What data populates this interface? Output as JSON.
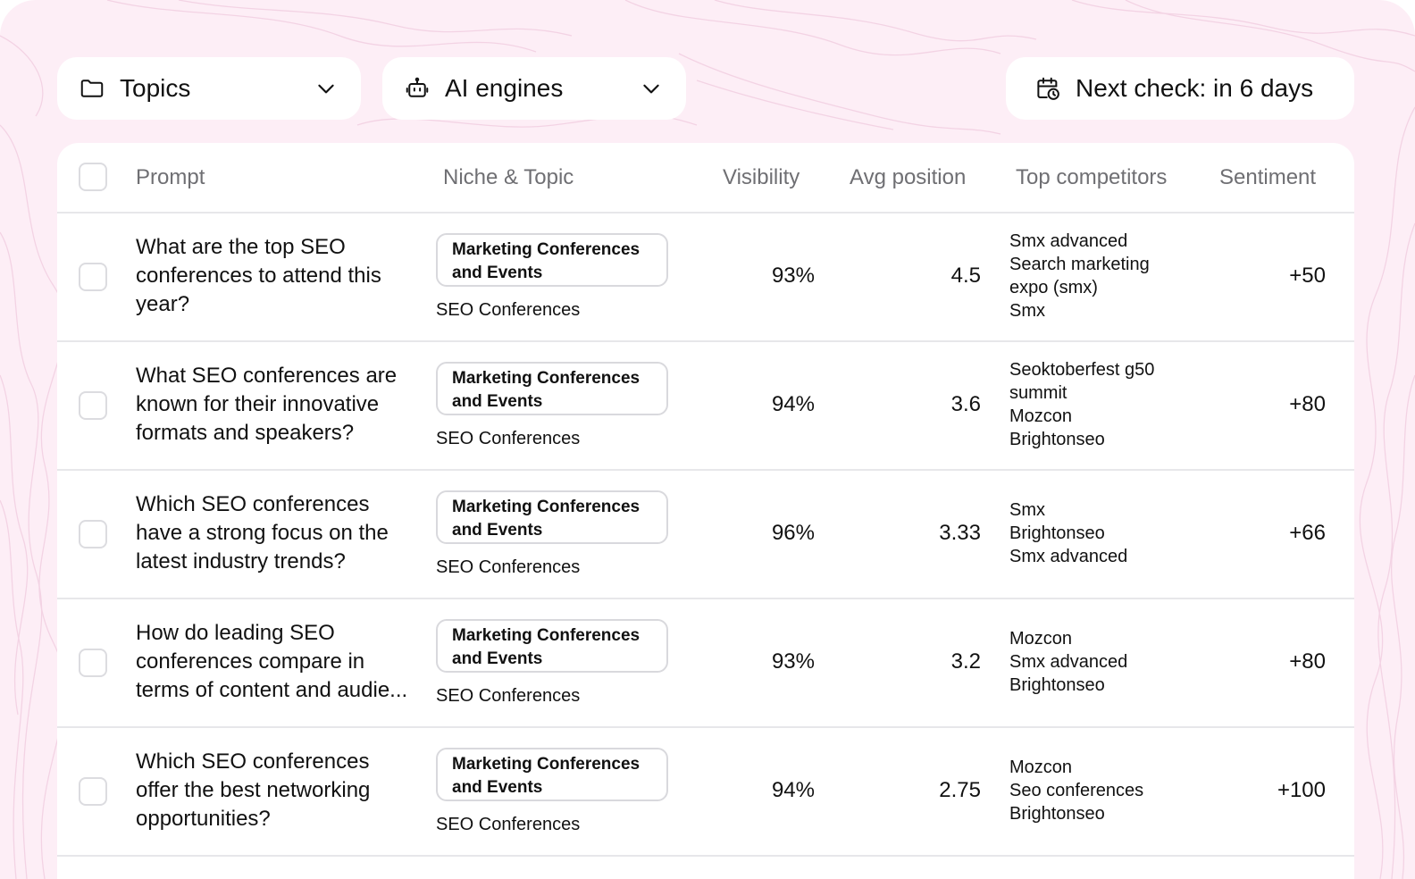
{
  "filters": {
    "topics_label": "Topics",
    "engines_label": "AI engines",
    "next_check_label": "Next check: in 6 days"
  },
  "table": {
    "headers": {
      "prompt": "Prompt",
      "niche_topic": "Niche & Topic",
      "visibility": "Visibility",
      "avg_position": "Avg position",
      "top_competitors": "Top competitors",
      "sentiment": "Sentiment"
    },
    "rows": [
      {
        "prompt_lines": [
          "What are the top SEO",
          "conferences to attend this",
          "year?"
        ],
        "niche_lines": [
          "Marketing Conferences",
          "and Events"
        ],
        "topic": "SEO Conferences",
        "visibility": "93%",
        "avg_position": "4.5",
        "competitors": [
          "Smx advanced",
          "Search marketing",
          "expo (smx)",
          "Smx"
        ],
        "sentiment": "+50"
      },
      {
        "prompt_lines": [
          "What SEO conferences are",
          "known for their innovative",
          "formats and speakers?"
        ],
        "niche_lines": [
          "Marketing Conferences",
          "and Events"
        ],
        "topic": "SEO Conferences",
        "visibility": "94%",
        "avg_position": "3.6",
        "competitors": [
          "Seoktoberfest g50",
          "summit",
          "Mozcon",
          "Brightonseo"
        ],
        "sentiment": "+80"
      },
      {
        "prompt_lines": [
          "Which SEO conferences",
          "have a strong focus on the",
          "latest industry trends?"
        ],
        "niche_lines": [
          "Marketing Conferences",
          "and Events"
        ],
        "topic": "SEO Conferences",
        "visibility": "96%",
        "avg_position": "3.33",
        "competitors": [
          "Smx",
          "Brightonseo",
          "Smx advanced"
        ],
        "sentiment": "+66"
      },
      {
        "prompt_lines": [
          "How do leading SEO",
          "conferences compare in",
          "terms of content and audie..."
        ],
        "niche_lines": [
          "Marketing Conferences",
          "and Events"
        ],
        "topic": "SEO Conferences",
        "visibility": "93%",
        "avg_position": "3.2",
        "competitors": [
          "Mozcon",
          "Smx advanced",
          "Brightonseo"
        ],
        "sentiment": "+80"
      },
      {
        "prompt_lines": [
          "Which SEO conferences",
          "offer the best networking",
          "opportunities?"
        ],
        "niche_lines": [
          "Marketing Conferences",
          "and Events"
        ],
        "topic": "SEO Conferences",
        "visibility": "94%",
        "avg_position": "2.75",
        "competitors": [
          "Mozcon",
          "Seo conferences",
          "Brightonseo"
        ],
        "sentiment": "+100"
      }
    ]
  }
}
